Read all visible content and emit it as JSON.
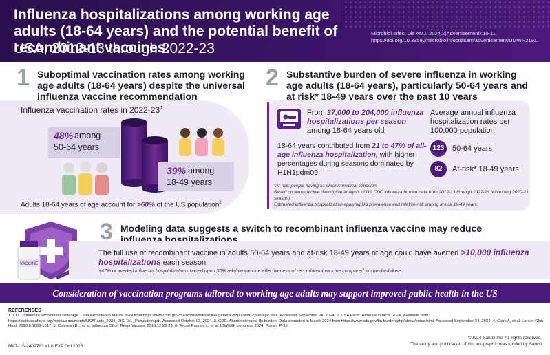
{
  "header": {
    "title": "Influenza hospitalizations among working age adults (18-64 years) and the potential benefit of recombinant vaccines:",
    "subtitle": "USA, 2012-13 through 2022-23",
    "citation": "Microbiol Infect Dis AMJ. 2024;2(Advertisement):10-11. https://doi.org/10.33590/microbiolinfectdisam/advertisement/UMWR2191."
  },
  "section1": {
    "number": "1",
    "heading": "Suboptimal vaccination rates among working age adults (18-64 years) despite the universal influenza vaccine recommendation",
    "rates_label": "Influenza vaccination rates in 2022-23",
    "rates_label_sup": "1",
    "group1": {
      "pct": "48%",
      "word": "among",
      "ages": "50-64 years"
    },
    "group2": {
      "pct": "39%",
      "word": "among",
      "ages": "18-49 years"
    },
    "footer_pre": "Adults 18-64 years of age account for ",
    "footer_hl": ">60%",
    "footer_post": " of the US population",
    "footer_sup": "2"
  },
  "section2": {
    "number": "2",
    "heading": "Substantive burden of severe influenza in working age adults (18-64 years), particularly 50-64 years and at risk* 18-49 years over the past 10 years",
    "hosp_pre": "From ",
    "hosp_hl": "37,000 to 204,000 influenza hospitalizations per season",
    "hosp_post": " among 18-64 years old",
    "contrib_pre": "18-64 years contributed from ",
    "contrib_hl": "21 to 47% of all-age influenza hospitalization,",
    "contrib_post": " with higher percentages during seasons dominated by H1N1pdm09",
    "avg_title": "Average annual influenza hospitalization rates per 100,000 population",
    "rate1": {
      "value": "123",
      "label": "50-64 years"
    },
    "rate2": {
      "value": "82",
      "label": "At-risk* 18-49 years"
    },
    "note1": "*At-risk: people having ≥1 chronic medical condition",
    "note2": "Based on retrospective descriptive analysis of US CDC influenza burden data from 2012-13 through 2022-23 (excluding 2020-21 season)",
    "note3": "Estimated influenza hospitalization applying US prevalence and relative risk among at-risk 18-49 years"
  },
  "section3": {
    "number": "3",
    "heading": "Modeling data suggests a switch to recombinant influenza vaccine may reduce influenza hospitalizations",
    "text_pre": "The full use of recombinant vaccine in adults 50-64 years and at-risk 18-49 years of age could have averted ",
    "text_hl": ">10,000 influenza hospitalizations",
    "text_post": " each season",
    "note": "+47% of averted influenza hospitalizations based upon 30% relative vaccine effectiveness of recombinant vaccine compared to standard dose",
    "vial_label": "VACCINE"
  },
  "banner": "Consideration of vaccination programs tailored to working age adults may support improved public health in the US",
  "references": {
    "title": "REFERENCES",
    "body": "1. CDC. Influenza vaccination coverage. Data extracted in March 2024 from https://www.cdc.gov/fluvaxview/interactive/general-population-coverage.html. Accessed September 24, 2024; 2. USA Facts. America in facts. 2024. Available from: https://static.usafacts.org/media/documents/USAFacts_2024_DIGITAL_Population.pdf. Accessed October 02, 2024. 3. CDC. About estimated flu burden. Data extracted in March 2024 from https://www.cdc.gov/flu-burden/php/about/index.html. Accessed September 24, 2024; 4. Clark A, et al. Lancet Glob Heal. 2020;8:1003-1017; 5. Coleman BL, et al. Influenza Other Respi Viruses. 2018;12:22-29; 6. Torcel-Pagnon L, et al. IDWEEK congress 2024. Poster_P-35."
  },
  "footer": {
    "code": "MAT-US-2409793 v1.0 EXP Oct 2026",
    "copyright": "©2024 Sanofi Inc. All rights reserved.",
    "funding": "The study and publication of this infographic was funded by Sanofi"
  },
  "colors": {
    "primary": "#4a1b7c",
    "accent": "#6b2c91",
    "panel": "#efeaf5",
    "box": "#d9d0e6"
  }
}
